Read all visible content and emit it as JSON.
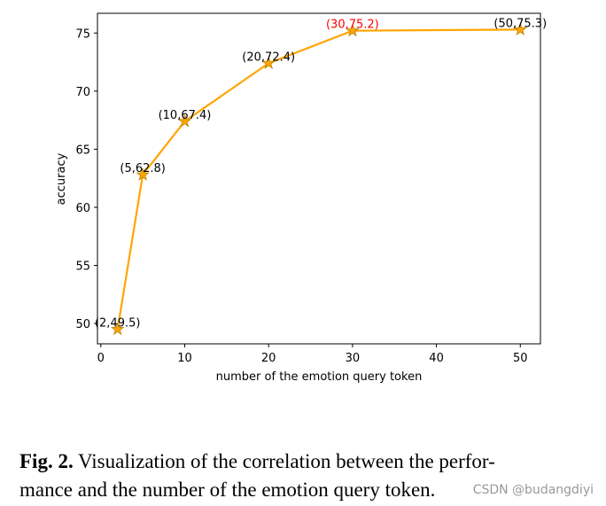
{
  "chart_data": {
    "type": "line",
    "xlabel": "number of the emotion query token",
    "ylabel": "accuracy",
    "x": [
      2,
      5,
      10,
      20,
      30,
      50
    ],
    "series": [
      {
        "color": "#ffa500",
        "marker": "star",
        "values": [
          49.5,
          62.8,
          67.4,
          72.4,
          75.2,
          75.3
        ],
        "value_labels": [
          "(2,49.5)",
          "(5,62.8)",
          "(10,67.4)",
          "(20,72.4)",
          "(30,75.2)",
          "(50,75.3)"
        ],
        "value_label_colors": [
          "#000000",
          "#000000",
          "#000000",
          "#000000",
          "#ff0000",
          "#000000"
        ]
      }
    ],
    "xlim": [
      -0.4,
      52.4
    ],
    "ylim": [
      48.25,
      76.7
    ],
    "xticks": [
      0,
      10,
      20,
      30,
      40,
      50
    ],
    "yticks": [
      50,
      55,
      60,
      65,
      70,
      75
    ],
    "grid": false
  },
  "caption": {
    "label": "Fig. 2.",
    "lines": [
      "Visualization of the correlation between the perfor-",
      "mance and the number of the emotion query token."
    ]
  },
  "watermark": "CSDN @budangdiyi"
}
